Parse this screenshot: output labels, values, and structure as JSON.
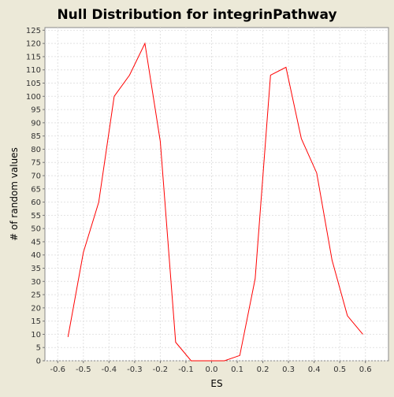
{
  "chart_data": {
    "type": "line",
    "title": "Null Distribution for integrinPathway",
    "xlabel": "ES",
    "ylabel": "# of random values",
    "xlim": [
      -0.65,
      0.69
    ],
    "ylim": [
      0,
      126
    ],
    "x_ticks": [
      "-0.6",
      "-0.5",
      "-0.4",
      "-0.3",
      "-0.2",
      "-0.1",
      "0.0",
      "0.1",
      "0.2",
      "0.3",
      "0.4",
      "0.5",
      "0.6"
    ],
    "y_ticks": [
      "0",
      "5",
      "10",
      "15",
      "20",
      "25",
      "30",
      "35",
      "40",
      "45",
      "50",
      "55",
      "60",
      "65",
      "70",
      "75",
      "80",
      "85",
      "90",
      "95",
      "100",
      "105",
      "110",
      "115",
      "120",
      "125"
    ],
    "grid": true,
    "series": [
      {
        "color": "#ff0000",
        "x": [
          -0.56,
          -0.5,
          -0.44,
          -0.38,
          -0.32,
          -0.26,
          -0.2,
          -0.14,
          -0.08,
          -0.02,
          0.05,
          0.11,
          0.17,
          0.23,
          0.29,
          0.35,
          0.41,
          0.47,
          0.53,
          0.59
        ],
        "y": [
          9,
          41,
          60,
          100,
          108,
          120,
          83,
          7,
          0,
          0,
          0,
          2,
          31,
          108,
          111,
          84,
          71,
          38,
          17,
          10
        ]
      }
    ]
  }
}
